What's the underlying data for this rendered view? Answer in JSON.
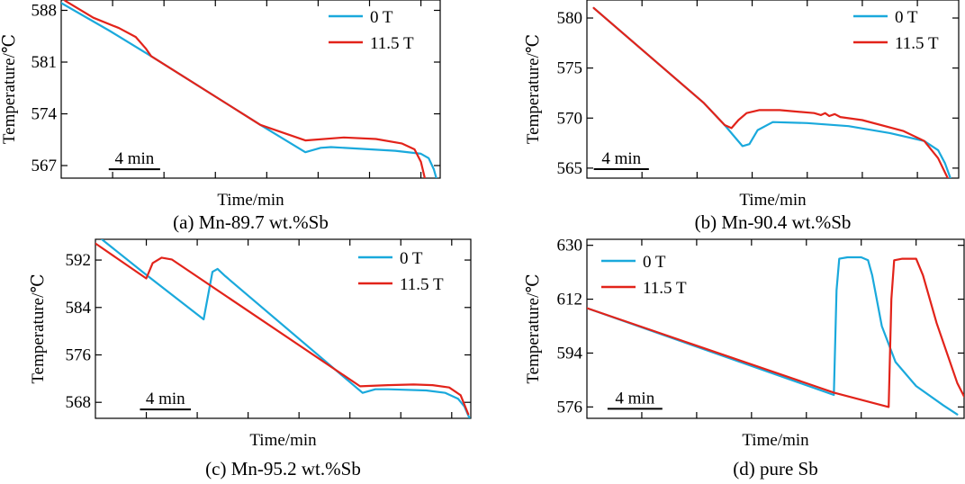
{
  "colors": {
    "zero_field": "#1aa9dc",
    "high_field": "#e2231a",
    "axis": "#000000"
  },
  "chart_data": [
    {
      "type": "line",
      "caption": "(a) Mn-89.7 wt.%Sb",
      "xlabel": "Time/min",
      "ylabel": "Temperature/℃",
      "yticks": [
        567,
        574,
        581,
        588
      ],
      "ylim": [
        565.3,
        589.4
      ],
      "xlim": [
        0,
        29.5
      ],
      "scale_bar": {
        "label": "4 min",
        "x_start": 3.7,
        "x_end": 7.7,
        "y": 566.5
      },
      "legend_position": "top-right",
      "series": [
        {
          "name": "0 T",
          "color": "#1aa9dc",
          "x": [
            0,
            3.8,
            7.0,
            15.5,
            19.0,
            20.2,
            21.0,
            23.0,
            26.0,
            28.0,
            28.6,
            29.0,
            29.2
          ],
          "y": [
            589.0,
            585.2,
            581.8,
            572.5,
            568.8,
            569.4,
            569.5,
            569.3,
            569.0,
            568.6,
            568.0,
            566.5,
            565.3
          ]
        },
        {
          "name": "11.5 T",
          "color": "#e2231a",
          "x": [
            0.3,
            2.5,
            4.5,
            5.8,
            6.6,
            7.0,
            15.5,
            19.0,
            22.0,
            24.5,
            26.5,
            27.5,
            28.0,
            28.3
          ],
          "y": [
            589.3,
            587.0,
            585.6,
            584.4,
            582.8,
            581.8,
            572.5,
            570.4,
            570.8,
            570.6,
            570.0,
            569.2,
            567.5,
            565.3
          ]
        }
      ]
    },
    {
      "type": "line",
      "caption": "(b) Mn-90.4 wt.%Sb",
      "xlabel": "Time/min",
      "ylabel": "Temperature/℃",
      "yticks": [
        565,
        570,
        575,
        580
      ],
      "ylim": [
        564.0,
        581.8
      ],
      "xlim": [
        0,
        27
      ],
      "scale_bar": {
        "label": "4 min",
        "x_start": 0.5,
        "x_end": 4.5,
        "y": 564.9
      },
      "legend_position": "top-right",
      "series": [
        {
          "name": "0 T",
          "color": "#1aa9dc",
          "x": [
            0.5,
            8.5,
            10.0,
            10.8,
            11.3,
            11.8,
            12.4,
            13.5,
            16.0,
            19.0,
            22.0,
            24.5,
            25.5,
            26.0,
            26.4
          ],
          "y": [
            581.0,
            571.5,
            569.3,
            568.0,
            567.2,
            567.4,
            568.8,
            569.6,
            569.5,
            569.2,
            568.5,
            567.7,
            566.8,
            565.5,
            564.0
          ]
        },
        {
          "name": "11.5 T",
          "color": "#e2231a",
          "x": [
            0.5,
            8.5,
            10.0,
            10.5,
            11.0,
            11.6,
            12.5,
            14.0,
            16.5,
            17.0,
            17.3,
            17.6,
            18.0,
            18.4,
            20.0,
            23.0,
            24.5,
            25.5,
            26.2
          ],
          "y": [
            581.0,
            571.5,
            569.3,
            569.0,
            569.8,
            570.5,
            570.8,
            570.8,
            570.5,
            570.3,
            570.5,
            570.2,
            570.4,
            570.1,
            569.8,
            568.7,
            567.7,
            566.0,
            564.0
          ]
        }
      ]
    },
    {
      "type": "line",
      "caption": "(c) Mn-95.2 wt.%Sb",
      "xlabel": "Time/min",
      "ylabel": "Temperature/℃",
      "yticks": [
        568,
        576,
        584,
        592
      ],
      "ylim": [
        565.3,
        595.5
      ],
      "xlim": [
        0,
        29.5
      ],
      "scale_bar": {
        "label": "4 min",
        "x_start": 3.5,
        "x_end": 7.5,
        "y": 566.8
      },
      "legend_position": "top-right",
      "series": [
        {
          "name": "0 T",
          "color": "#1aa9dc",
          "x": [
            0.5,
            4.0,
            8.5,
            9.2,
            9.6,
            10.2,
            21.0,
            22.0,
            23.0,
            26.0,
            27.5,
            28.5,
            29.0,
            29.4
          ],
          "y": [
            595.5,
            589.5,
            582.0,
            590.0,
            590.5,
            589.3,
            569.6,
            570.2,
            570.2,
            570.0,
            569.6,
            568.6,
            567.3,
            565.3
          ]
        },
        {
          "name": "11.5 T",
          "color": "#e2231a",
          "x": [
            0,
            4.0,
            4.5,
            5.2,
            6.0,
            20.8,
            23.0,
            25.0,
            26.5,
            27.8,
            28.7,
            29.3
          ],
          "y": [
            594.8,
            588.9,
            591.5,
            592.4,
            592.1,
            570.7,
            570.9,
            571.0,
            570.9,
            570.5,
            569.2,
            566.0
          ]
        }
      ]
    },
    {
      "type": "line",
      "caption": "(d) pure Sb",
      "xlabel": "Time/min",
      "ylabel": "Temperature/℃",
      "yticks": [
        576,
        594,
        612,
        630
      ],
      "ylim": [
        572.2,
        632.0
      ],
      "xlim": [
        0,
        27.5
      ],
      "scale_bar": {
        "label": "4 min",
        "x_start": 1.5,
        "x_end": 5.5,
        "y": 575.4
      },
      "legend_position": "top-left",
      "series": [
        {
          "name": "0 T",
          "color": "#1aa9dc",
          "x": [
            0,
            18.0,
            18.2,
            18.4,
            19.0,
            20.0,
            20.5,
            20.8,
            21.5,
            22.5,
            24.0,
            26.0,
            27.0
          ],
          "y": [
            609.0,
            580.0,
            615.0,
            625.5,
            626.0,
            626.0,
            625.0,
            620.0,
            603.0,
            591.0,
            583.0,
            576.5,
            573.5
          ]
        },
        {
          "name": "11.5 T",
          "color": "#e2231a",
          "x": [
            0,
            18.0,
            22.0,
            22.2,
            22.4,
            23.0,
            24.0,
            24.5,
            25.5,
            27.0,
            27.5
          ],
          "y": [
            609.0,
            580.8,
            576.0,
            612.0,
            625.0,
            625.5,
            625.5,
            620.0,
            604.0,
            584.0,
            579.5
          ]
        }
      ]
    }
  ]
}
